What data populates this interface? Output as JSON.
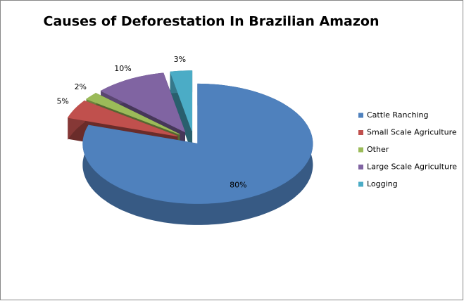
{
  "chart_data": {
    "type": "pie",
    "title": "Causes of Deforestation In Brazilian Amazon",
    "categories": [
      "Cattle Ranching",
      "Small Scale Agriculture",
      "Other",
      "Large Scale Agriculture",
      "Logging"
    ],
    "values": [
      80,
      5,
      2,
      10,
      3
    ],
    "value_labels": [
      "80%",
      "5%",
      "2%",
      "10%",
      "3%"
    ],
    "colors": [
      "#4f81bd",
      "#c0504d",
      "#9bbb59",
      "#8064a2",
      "#4bacc6"
    ],
    "legend": "right"
  }
}
